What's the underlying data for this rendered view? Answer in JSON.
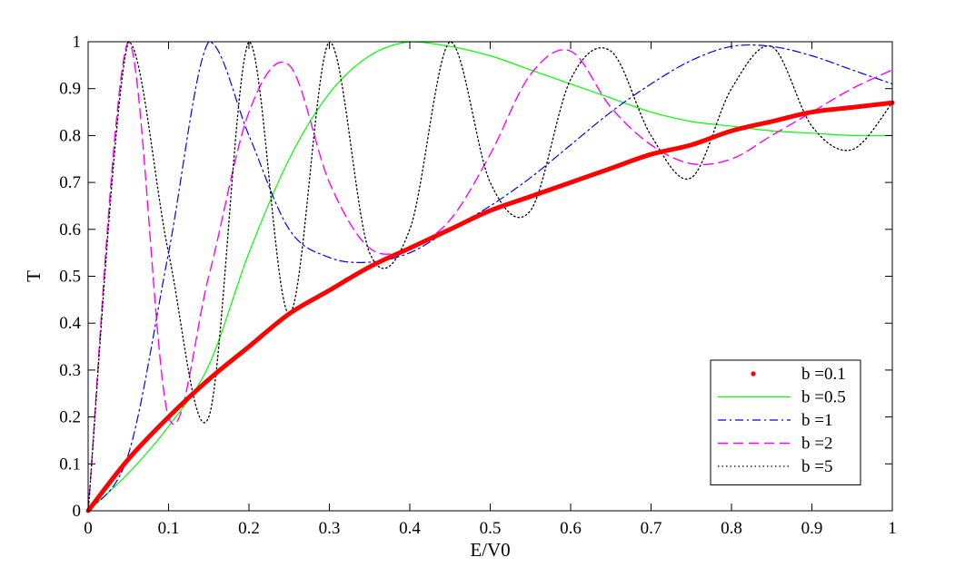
{
  "chart_data": {
    "type": "line",
    "title": "",
    "xlabel": "E/V0",
    "ylabel": "T",
    "xlim": [
      0,
      1
    ],
    "ylim": [
      0,
      1
    ],
    "x_ticks": [
      "0",
      "0.1",
      "0.2",
      "0.3",
      "0.4",
      "0.5",
      "0.6",
      "0.7",
      "0.8",
      "0.9",
      "1"
    ],
    "y_ticks": [
      "0",
      "0.1",
      "0.2",
      "0.3",
      "0.4",
      "0.5",
      "0.6",
      "0.7",
      "0.8",
      "0.9",
      "1"
    ],
    "grid": false,
    "legend_position": "bottom-right",
    "x": [
      0,
      0.05,
      0.1,
      0.15,
      0.2,
      0.25,
      0.3,
      0.35,
      0.4,
      0.45,
      0.5,
      0.55,
      0.6,
      0.65,
      0.7,
      0.75,
      0.8,
      0.85,
      0.9,
      0.95,
      1.0
    ],
    "series": [
      {
        "name": "b =0.1",
        "color": "#ff0000",
        "style": "dots",
        "values": [
          0,
          0.11,
          0.2,
          0.28,
          0.35,
          0.42,
          0.47,
          0.52,
          0.56,
          0.6,
          0.64,
          0.67,
          0.7,
          0.73,
          0.76,
          0.78,
          0.81,
          0.83,
          0.85,
          0.86,
          0.87
        ]
      },
      {
        "name": "b =0.5",
        "color": "#00ff00",
        "style": "solid",
        "values": [
          0,
          0.08,
          0.18,
          0.31,
          0.55,
          0.75,
          0.89,
          0.97,
          1.0,
          0.99,
          0.97,
          0.94,
          0.91,
          0.88,
          0.85,
          0.83,
          0.82,
          0.81,
          0.805,
          0.8,
          0.8
        ]
      },
      {
        "name": "b =1",
        "color": "#0000ff",
        "style": "dashdot",
        "values": [
          0,
          0.12,
          0.55,
          1.0,
          0.8,
          0.6,
          0.54,
          0.53,
          0.55,
          0.6,
          0.65,
          0.71,
          0.78,
          0.85,
          0.91,
          0.96,
          0.99,
          0.99,
          0.97,
          0.94,
          0.91
        ]
      },
      {
        "name": "b =2",
        "color": "#ff00ff",
        "style": "dash",
        "values": [
          0,
          1.0,
          0.2,
          0.5,
          0.85,
          0.95,
          0.7,
          0.56,
          0.56,
          0.62,
          0.76,
          0.93,
          0.98,
          0.86,
          0.78,
          0.74,
          0.75,
          0.8,
          0.85,
          0.9,
          0.94
        ]
      },
      {
        "name": "b =5",
        "color": "#000000",
        "style": "dot",
        "values": [
          0,
          1.0,
          0.55,
          0.2,
          1.0,
          0.42,
          1.0,
          0.55,
          0.6,
          1.0,
          0.7,
          0.64,
          0.92,
          0.98,
          0.8,
          0.71,
          0.9,
          0.99,
          0.82,
          0.77,
          0.87
        ]
      }
    ]
  }
}
